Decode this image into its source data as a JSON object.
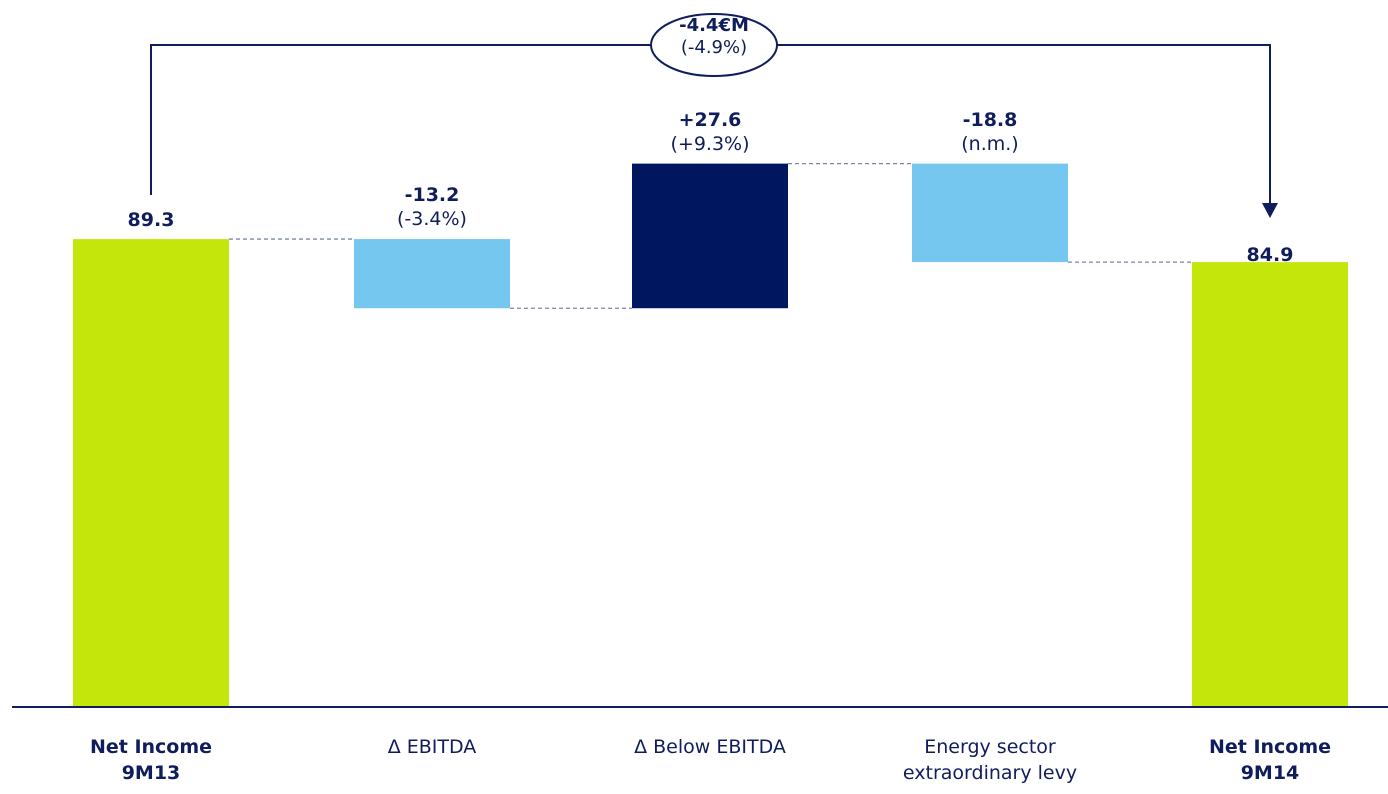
{
  "chart_data": {
    "type": "waterfall",
    "categories": [
      "Net Income 9M13",
      "Δ EBITDA",
      "Δ Below EBITDA",
      "Energy sector extraordinary levy",
      "Net Income 9M14"
    ],
    "values": [
      89.3,
      -13.2,
      27.6,
      -18.8,
      84.9
    ],
    "kinds": [
      "total",
      "delta",
      "delta",
      "delta",
      "total"
    ],
    "value_labels": [
      "89.3",
      "-13.2",
      "+27.6",
      "-18.8",
      "84.9"
    ],
    "pct_labels": [
      "",
      "(-3.4%)",
      "(+9.3%)",
      "(n.m.)",
      ""
    ],
    "total_change": {
      "value": "-4.4€M",
      "pct": "(-4.9%)"
    },
    "colors": {
      "total": "#c5e60b",
      "decrease": "#76c7f0",
      "increase": "#00165e",
      "text": "#0f1d5c",
      "connector": "#7a86a8"
    }
  }
}
